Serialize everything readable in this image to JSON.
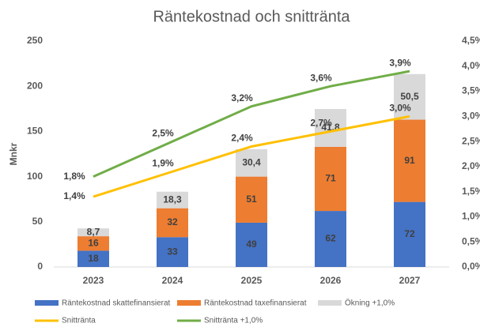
{
  "chart_data": {
    "type": "bar_line",
    "title": "Räntekostnad och snittränta",
    "y_label": "Mnkr",
    "categories": [
      "2023",
      "2024",
      "2025",
      "2026",
      "2027"
    ],
    "series": [
      {
        "name": "Räntekostnad skattefinansierat",
        "color": "#4472c4",
        "stack": true,
        "values": [
          18,
          33,
          49,
          62,
          72
        ]
      },
      {
        "name": "Räntekostnad taxefinansierat",
        "color": "#ed7d31",
        "stack": true,
        "values": [
          16,
          32,
          51,
          71,
          91
        ]
      },
      {
        "name": "Ökning +1,0%",
        "color": "#d9d9d9",
        "stack": true,
        "values": [
          8.7,
          18.3,
          30.4,
          41.8,
          50.5
        ],
        "value_labels": [
          "8,7",
          "18,3",
          "30,4",
          "41,8",
          "50,5"
        ]
      },
      {
        "name": "Snittränta",
        "color": "#ffc000",
        "axis": "y2",
        "kind": "line",
        "values": [
          1.4,
          1.9,
          2.4,
          2.7,
          3.0
        ],
        "value_labels": [
          "1,4%",
          "1,9%",
          "2,4%",
          "2,7%",
          "3,0%"
        ]
      },
      {
        "name": "Snittränta +1,0%",
        "color": "#70ad47",
        "axis": "y2",
        "kind": "line",
        "values": [
          1.8,
          2.5,
          3.2,
          3.6,
          3.9
        ],
        "value_labels": [
          "1,8%",
          "2,5%",
          "3,2%",
          "3,6%",
          "3,9%"
        ]
      }
    ],
    "ylim": [
      0,
      250
    ],
    "yticks": [
      0,
      50,
      100,
      150,
      200,
      250
    ],
    "y2lim": [
      0,
      4.5
    ],
    "y2ticks": [
      {
        "value": 0,
        "label": "0,0%"
      },
      {
        "value": 0.5,
        "label": "0,5%"
      },
      {
        "value": 1,
        "label": "1,0%"
      },
      {
        "value": 1.5,
        "label": "1,5%"
      },
      {
        "value": 2,
        "label": "2,0%"
      },
      {
        "value": 2.5,
        "label": "2,5%"
      },
      {
        "value": 3,
        "label": "3,0%"
      },
      {
        "value": 3.5,
        "label": "3,5%"
      },
      {
        "value": 4,
        "label": "4,0%"
      },
      {
        "value": 4.5,
        "label": "4,5%"
      }
    ],
    "grid": false
  }
}
